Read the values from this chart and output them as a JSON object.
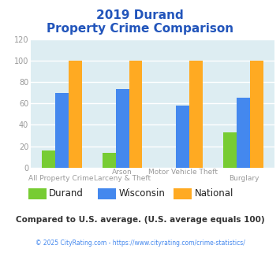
{
  "title_line1": "2019 Durand",
  "title_line2": "Property Crime Comparison",
  "series": {
    "Durand": [
      16,
      14,
      0,
      33
    ],
    "Wisconsin": [
      70,
      73,
      58,
      65
    ],
    "National": [
      100,
      100,
      100,
      100
    ]
  },
  "colors": {
    "Durand": "#77cc33",
    "Wisconsin": "#4488ee",
    "National": "#ffaa22"
  },
  "ylim": [
    0,
    120
  ],
  "yticks": [
    0,
    20,
    40,
    60,
    80,
    100,
    120
  ],
  "background_color": "#ddedf2",
  "grid_color": "#ffffff",
  "title_color": "#2255bb",
  "axis_label_color": "#999999",
  "footer_text": "Compared to U.S. average. (U.S. average equals 100)",
  "footer_color": "#333333",
  "copyright_text": "© 2025 CityRating.com - https://www.cityrating.com/crime-statistics/",
  "copyright_color": "#4488ee",
  "bar_width": 0.22
}
